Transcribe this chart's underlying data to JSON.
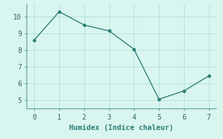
{
  "x": [
    0,
    1,
    2,
    3,
    4,
    5,
    6,
    7
  ],
  "y": [
    8.6,
    10.3,
    9.5,
    9.15,
    8.05,
    5.05,
    5.55,
    6.45
  ],
  "line_color": "#2d7d74",
  "marker": "o",
  "marker_size": 2.5,
  "line_width": 1.0,
  "xlabel": "Humidex (Indice chaleur)",
  "xlim": [
    -0.3,
    7.3
  ],
  "ylim": [
    4.5,
    10.75
  ],
  "yticks": [
    5,
    6,
    7,
    8,
    9,
    10
  ],
  "xticks": [
    0,
    1,
    2,
    3,
    4,
    5,
    6,
    7
  ],
  "bg_color": "#d8f5f0",
  "grid_color": "#b8e0da",
  "spine_color": "#5a9e96",
  "xlabel_fontsize": 7.5,
  "tick_fontsize": 7
}
